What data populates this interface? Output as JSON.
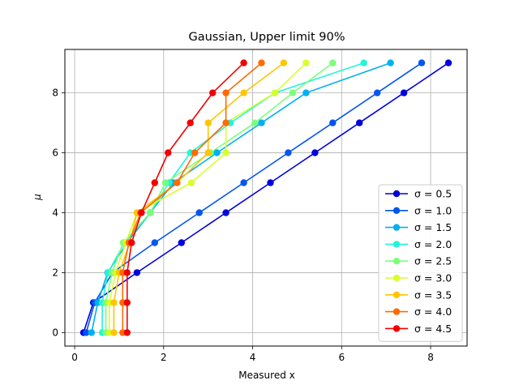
{
  "chart_data": {
    "type": "line",
    "title": "Gaussian, Upper limit 90%",
    "xlabel": "Measured x",
    "ylabel": "μ",
    "xlim": [
      -0.22,
      8.82
    ],
    "ylim": [
      -0.45,
      9.45
    ],
    "xticks": [
      0,
      2,
      4,
      6,
      8
    ],
    "yticks": [
      0,
      2,
      4,
      6,
      8
    ],
    "grid": true,
    "legend_position": "lower-right",
    "y": [
      0,
      1,
      2,
      3,
      4,
      5,
      6,
      7,
      8,
      9
    ],
    "series": [
      {
        "name": "σ = 0.5",
        "color": "#0000dc",
        "x": [
          0.2,
          0.42,
          1.4,
          2.4,
          3.4,
          4.4,
          5.4,
          6.4,
          7.4,
          8.4
        ]
      },
      {
        "name": "σ = 1.0",
        "color": "#0055ef",
        "x": [
          0.26,
          0.45,
          0.85,
          1.8,
          2.8,
          3.8,
          4.8,
          5.8,
          6.8,
          7.8
        ]
      },
      {
        "name": "σ = 1.5",
        "color": "#00b0f0",
        "x": [
          0.38,
          0.52,
          0.74,
          1.18,
          1.7,
          2.22,
          3.2,
          4.2,
          5.2,
          7.1
        ]
      },
      {
        "name": "σ = 2.0",
        "color": "#22f5d8",
        "x": [
          0.62,
          0.62,
          0.75,
          1.12,
          1.7,
          2.12,
          2.6,
          3.5,
          4.5,
          6.5
        ]
      },
      {
        "name": "σ = 2.5",
        "color": "#7bff7b",
        "x": [
          0.7,
          0.7,
          0.84,
          1.09,
          1.7,
          2.04,
          3.05,
          4.05,
          4.9,
          5.8
        ]
      },
      {
        "name": "σ = 3.0",
        "color": "#d8ff2a",
        "x": [
          0.78,
          0.78,
          0.92,
          1.15,
          1.4,
          2.62,
          3.4,
          3.4,
          4.5,
          5.2
        ]
      },
      {
        "name": "σ = 3.5",
        "color": "#ffc500",
        "x": [
          0.88,
          0.88,
          1.0,
          1.24,
          1.4,
          2.3,
          3.0,
          3.0,
          3.8,
          4.7
        ]
      },
      {
        "name": "σ = 4.0",
        "color": "#ff6a00",
        "x": [
          1.08,
          1.08,
          1.08,
          1.22,
          1.48,
          2.3,
          2.7,
          3.4,
          3.4,
          4.2
        ]
      },
      {
        "name": "σ = 4.5",
        "color": "#f00000",
        "x": [
          1.18,
          1.18,
          1.18,
          1.28,
          1.5,
          1.8,
          2.1,
          2.6,
          3.1,
          3.8
        ]
      }
    ]
  }
}
